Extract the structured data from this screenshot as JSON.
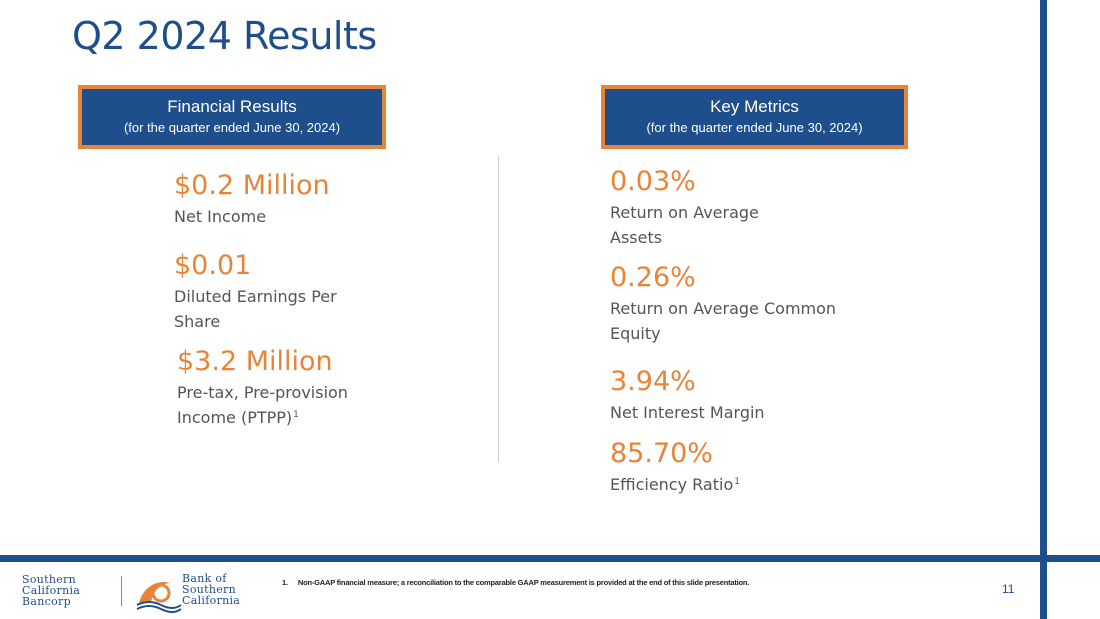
{
  "slide": {
    "title": "Q2 2024 Results",
    "page_number": "11"
  },
  "financial": {
    "header": "Financial Results",
    "subheader": "(for the quarter ended June 30, 2024)",
    "items": [
      {
        "value": "$0.2 Million",
        "label": "Net Income"
      },
      {
        "value": "$0.01",
        "label_line1": "Diluted Earnings Per",
        "label_line2": "Share"
      },
      {
        "value": "$3.2 Million",
        "label_line1": "Pre-tax, Pre-provision",
        "label_line2": "Income (PTPP)",
        "footnote_marker": "1"
      }
    ]
  },
  "key_metrics": {
    "header": "Key Metrics",
    "subheader": "(for the quarter ended June 30, 2024)",
    "items": [
      {
        "value": "0.03%",
        "label_line1": "Return on Average",
        "label_line2": "Assets"
      },
      {
        "value": "0.26%",
        "label_line1": "Return on Average Common",
        "label_line2": "Equity"
      },
      {
        "value": "3.94%",
        "label": "Net Interest Margin"
      },
      {
        "value": "85.70%",
        "label": "Efficiency Ratio",
        "footnote_marker": "1"
      }
    ]
  },
  "footnote": {
    "number": "1.",
    "text": "Non-GAAP financial measure; a reconciliation to the comparable GAAP measurement is provided at the end of this slide presentation."
  },
  "logos": {
    "left": [
      "Southern",
      "California",
      "Bancorp"
    ],
    "right": [
      "Bank of",
      "Southern",
      "California"
    ]
  },
  "colors": {
    "brand_blue": "#1f4e8c",
    "accent_orange": "#e8833a"
  }
}
